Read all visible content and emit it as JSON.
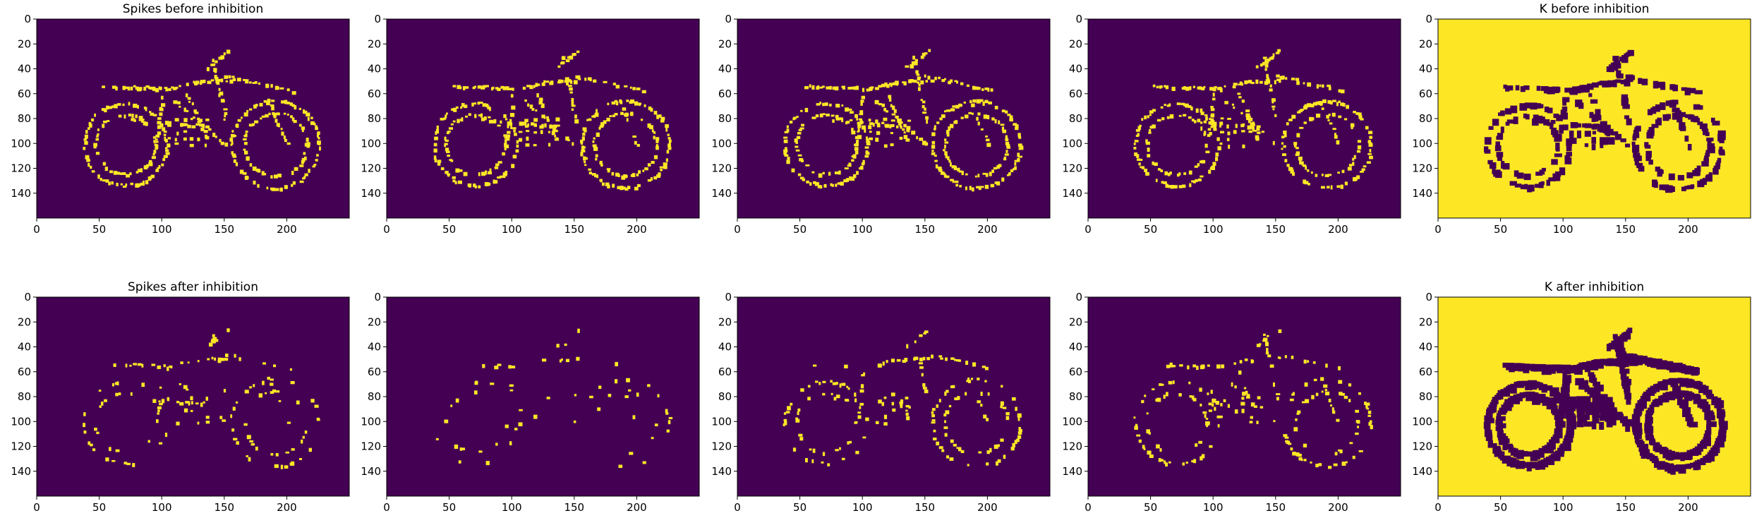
{
  "colors": {
    "background": "#440154",
    "foreground": "#fde725",
    "axis": "#000000"
  },
  "chart_data": {
    "type": "heatmap",
    "rows": 2,
    "columns": 5,
    "xticks": [
      0,
      50,
      100,
      150,
      200
    ],
    "yticks": [
      0,
      20,
      40,
      60,
      80,
      100,
      120,
      140
    ],
    "xlim": [
      0,
      250
    ],
    "ylim": [
      160,
      0
    ],
    "panels": [
      {
        "title": "Spikes before inhibition",
        "kind": "spikes",
        "density": 0.75,
        "invert": false
      },
      {
        "title": "",
        "kind": "spikes",
        "density": 0.72,
        "invert": false
      },
      {
        "title": "",
        "kind": "spikes",
        "density": 0.78,
        "invert": false
      },
      {
        "title": "",
        "kind": "spikes",
        "density": 0.7,
        "invert": false
      },
      {
        "title": "K before inhibition",
        "kind": "mask",
        "density": 0.55,
        "invert": true
      },
      {
        "title": "Spikes after inhibition",
        "kind": "spikes",
        "density": 0.28,
        "invert": false
      },
      {
        "title": "",
        "kind": "spikes",
        "density": 0.12,
        "invert": false
      },
      {
        "title": "",
        "kind": "spikes",
        "density": 0.35,
        "invert": false
      },
      {
        "title": "",
        "kind": "spikes",
        "density": 0.4,
        "invert": false
      },
      {
        "title": "K after inhibition",
        "kind": "mask",
        "density": 1.0,
        "invert": true
      }
    ]
  }
}
